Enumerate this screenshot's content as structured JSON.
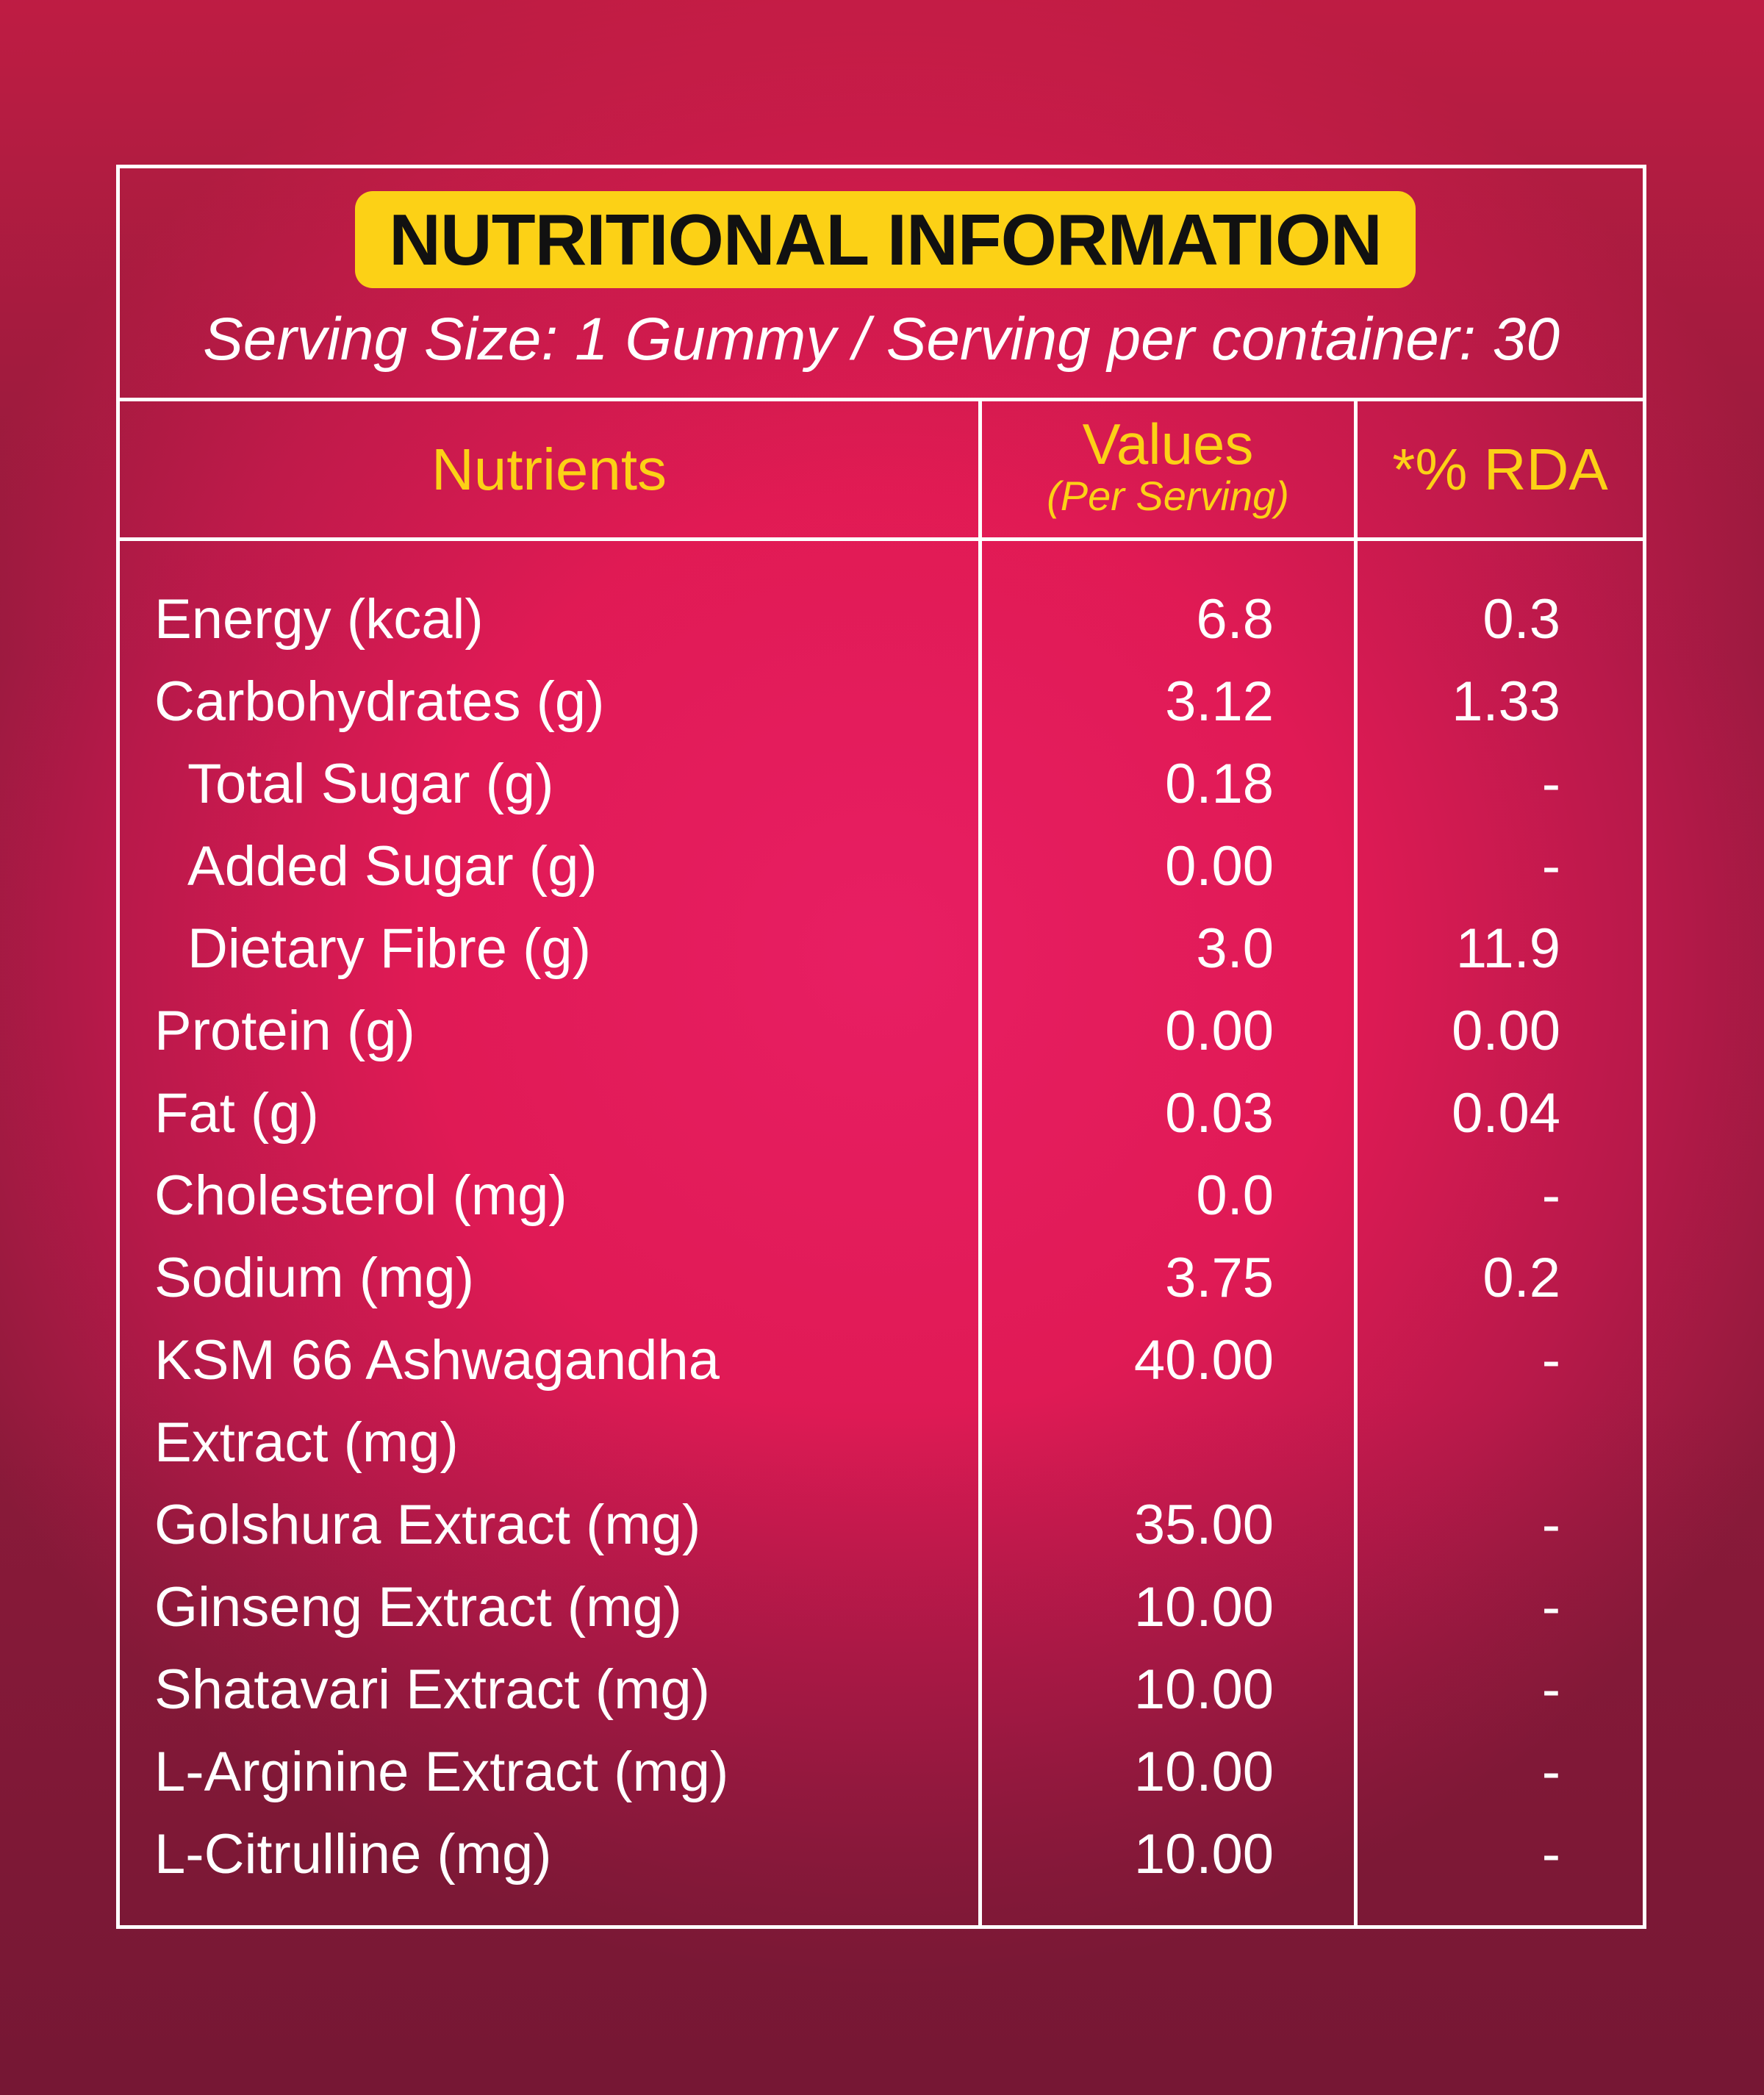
{
  "title": "NUTRITIONAL INFORMATION",
  "serving": "Serving Size: 1 Gummy / Serving per container: 30",
  "headers": {
    "nutrients": "Nutrients",
    "values": "Values",
    "values_sub": "(Per Serving)",
    "rda": "*% RDA"
  },
  "colors": {
    "accent": "#fcd116",
    "background": "#e01a55",
    "text": "#ffffff"
  },
  "rows": [
    {
      "name": "Energy (kcal)",
      "value": "6.8",
      "rda": "0.3"
    },
    {
      "name": "Carbohydrates (g)",
      "value": "3.12",
      "rda": "1.33"
    },
    {
      "name": "Total Sugar (g)",
      "value": "0.18",
      "rda": "-"
    },
    {
      "name": "Added Sugar (g)",
      "value": "0.00",
      "rda": "-"
    },
    {
      "name": "Dietary Fibre (g)",
      "value": "3.0",
      "rda": "11.9"
    },
    {
      "name": "Protein (g)",
      "value": "0.00",
      "rda": "0.00"
    },
    {
      "name": "Fat (g)",
      "value": "0.03",
      "rda": "0.04"
    },
    {
      "name": "Cholesterol (mg)",
      "value": "0.0",
      "rda": "-"
    },
    {
      "name": "Sodium (mg)",
      "value": "3.75",
      "rda": "0.2"
    },
    {
      "name": "KSM 66 Ashwagandha",
      "value": "40.00",
      "rda": "-"
    },
    {
      "name": "Extract (mg)",
      "value": "",
      "rda": ""
    },
    {
      "name": "Golshura Extract (mg)",
      "value": "35.00",
      "rda": "-"
    },
    {
      "name": "Ginseng Extract (mg)",
      "value": "10.00",
      "rda": "-"
    },
    {
      "name": "Shatavari Extract (mg)",
      "value": "10.00",
      "rda": "-"
    },
    {
      "name": "L-Arginine Extract (mg)",
      "value": "10.00",
      "rda": "-"
    },
    {
      "name": "L-Citrulline (mg)",
      "value": "10.00",
      "rda": "-"
    }
  ]
}
